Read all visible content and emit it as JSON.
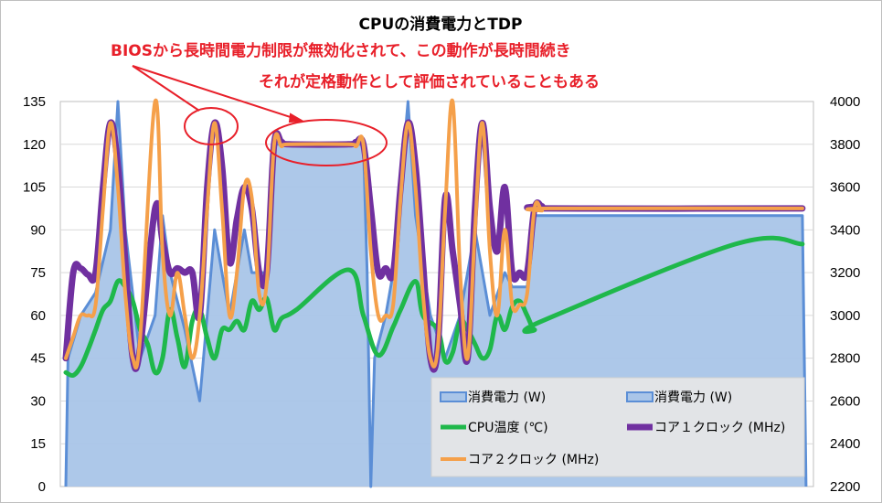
{
  "chart_data": {
    "type": "line",
    "title": "CPUの消費電力とTDP",
    "annotations": [
      "BIOSから長時間電力制限が無効化されて、この動作が長時間続き",
      "それが定格動作として評価されていることもある"
    ],
    "y_left": {
      "ylim": [
        0,
        135
      ],
      "ticks": [
        "0",
        "15",
        "30",
        "45",
        "60",
        "75",
        "90",
        "105",
        "120",
        "135"
      ]
    },
    "y_right": {
      "ylim": [
        2200,
        4000
      ],
      "ticks": [
        "2200",
        "2400",
        "2600",
        "2800",
        "3000",
        "3200",
        "3400",
        "3600",
        "3800",
        "4000"
      ]
    },
    "xlim": [
      0,
      100
    ],
    "legend": {
      "placement": "bottom-right",
      "items": [
        "消費電力 (W)",
        "消費電力 (W)",
        "CPU温度 (℃)",
        "コア１クロック (MHz)",
        "コア２クロック (MHz)"
      ]
    },
    "series": [
      {
        "name": "消費電力 (W)",
        "axis": "left",
        "type": "area",
        "color": "#a9c5e8",
        "edge": "#5b8ed6",
        "points": [
          [
            0,
            0
          ],
          [
            0.3,
            45
          ],
          [
            2,
            60
          ],
          [
            4,
            68
          ],
          [
            6,
            90
          ],
          [
            7,
            135
          ],
          [
            8,
            90
          ],
          [
            10,
            45
          ],
          [
            12,
            60
          ],
          [
            13,
            95
          ],
          [
            14,
            75
          ],
          [
            16,
            55
          ],
          [
            18,
            30
          ],
          [
            19,
            60
          ],
          [
            20,
            90
          ],
          [
            21,
            75
          ],
          [
            22,
            60
          ],
          [
            24,
            90
          ],
          [
            25,
            75
          ],
          [
            27,
            75
          ],
          [
            28,
            120
          ],
          [
            38,
            120
          ],
          [
            40,
            120
          ],
          [
            40.5,
            75
          ],
          [
            41,
            0
          ],
          [
            41.5,
            45
          ],
          [
            43,
            60
          ],
          [
            44,
            75
          ],
          [
            46,
            135
          ],
          [
            47,
            95
          ],
          [
            49,
            60
          ],
          [
            51,
            45
          ],
          [
            53,
            60
          ],
          [
            54,
            75
          ],
          [
            55,
            90
          ],
          [
            57,
            60
          ],
          [
            59,
            75
          ],
          [
            60,
            70
          ],
          [
            61,
            70
          ],
          [
            62,
            70
          ],
          [
            63,
            95
          ],
          [
            99,
            95
          ],
          [
            99.5,
            0
          ]
        ]
      },
      {
        "name": "消費電力 (W)",
        "axis": "left",
        "type": "line",
        "color": "#a9c5e8",
        "edge": "#5b8ed6",
        "points": []
      },
      {
        "name": "CPU温度 (℃)",
        "axis": "left",
        "type": "line",
        "color": "#1fb84b",
        "points": [
          [
            0,
            40
          ],
          [
            1,
            39
          ],
          [
            2,
            42
          ],
          [
            3,
            48
          ],
          [
            4,
            55
          ],
          [
            5,
            62
          ],
          [
            6,
            65
          ],
          [
            7,
            72
          ],
          [
            8,
            70
          ],
          [
            9,
            65
          ],
          [
            10,
            55
          ],
          [
            11,
            50
          ],
          [
            12,
            40
          ],
          [
            13,
            45
          ],
          [
            14,
            62
          ],
          [
            15,
            52
          ],
          [
            16,
            42
          ],
          [
            17,
            58
          ],
          [
            18,
            62
          ],
          [
            19,
            52
          ],
          [
            20,
            45
          ],
          [
            21,
            55
          ],
          [
            22,
            55
          ],
          [
            23,
            58
          ],
          [
            24,
            55
          ],
          [
            25,
            65
          ],
          [
            26,
            62
          ],
          [
            27,
            66
          ],
          [
            28,
            55
          ],
          [
            29,
            59
          ],
          [
            31,
            62
          ],
          [
            38,
            76
          ],
          [
            40,
            60
          ],
          [
            42,
            46
          ],
          [
            44,
            56
          ],
          [
            45,
            62
          ],
          [
            47,
            72
          ],
          [
            48,
            60
          ],
          [
            50,
            55
          ],
          [
            51,
            44
          ],
          [
            52,
            47
          ],
          [
            53,
            58
          ],
          [
            54,
            55
          ],
          [
            55,
            50
          ],
          [
            56,
            45
          ],
          [
            57,
            48
          ],
          [
            58,
            60
          ],
          [
            59,
            55
          ],
          [
            60,
            63
          ],
          [
            61,
            65
          ],
          [
            62,
            60
          ],
          [
            63,
            55
          ],
          [
            64,
            58
          ],
          [
            90,
            85
          ],
          [
            99,
            85
          ]
        ]
      },
      {
        "name": "コア１クロック (MHz)",
        "axis": "right",
        "type": "line",
        "color": "#7030a0",
        "points": [
          [
            0,
            2800
          ],
          [
            1,
            3200
          ],
          [
            2,
            3220
          ],
          [
            3,
            3190
          ],
          [
            4,
            3200
          ],
          [
            5,
            3600
          ],
          [
            6,
            3900
          ],
          [
            7,
            3700
          ],
          [
            8,
            3250
          ],
          [
            9,
            2800
          ],
          [
            10,
            2850
          ],
          [
            12,
            3500
          ],
          [
            13,
            3350
          ],
          [
            14,
            3200
          ],
          [
            15,
            3220
          ],
          [
            16,
            3200
          ],
          [
            17,
            3200
          ],
          [
            18,
            3000
          ],
          [
            19,
            3600
          ],
          [
            20,
            3900
          ],
          [
            21,
            3700
          ],
          [
            22,
            3250
          ],
          [
            23,
            3450
          ],
          [
            24,
            3600
          ],
          [
            25,
            3500
          ],
          [
            26,
            3200
          ],
          [
            27,
            3200
          ],
          [
            28,
            3800
          ],
          [
            29,
            3810
          ],
          [
            30,
            3800
          ],
          [
            38,
            3800
          ],
          [
            39,
            3810
          ],
          [
            40,
            3800
          ],
          [
            41,
            3500
          ],
          [
            42,
            3200
          ],
          [
            43,
            3220
          ],
          [
            44,
            3200
          ],
          [
            45,
            3600
          ],
          [
            46,
            3900
          ],
          [
            47,
            3700
          ],
          [
            48,
            3250
          ],
          [
            49,
            2800
          ],
          [
            50,
            2850
          ],
          [
            51,
            3550
          ],
          [
            52,
            3300
          ],
          [
            53,
            3050
          ],
          [
            54,
            2800
          ],
          [
            55,
            3500
          ],
          [
            56,
            3900
          ],
          [
            57,
            3500
          ],
          [
            58,
            3300
          ],
          [
            59,
            3600
          ],
          [
            60,
            3200
          ],
          [
            61,
            3200
          ],
          [
            62,
            3200
          ],
          [
            63,
            3500
          ],
          [
            64,
            3510
          ],
          [
            65,
            3500
          ],
          [
            99,
            3500
          ]
        ]
      },
      {
        "name": "コア２クロック (MHz)",
        "axis": "right",
        "type": "line",
        "color": "#f5a04a",
        "points": [
          [
            0,
            2800
          ],
          [
            1,
            2900
          ],
          [
            2,
            3000
          ],
          [
            3,
            3000
          ],
          [
            4,
            3050
          ],
          [
            5,
            3500
          ],
          [
            6,
            3900
          ],
          [
            7,
            3600
          ],
          [
            8,
            3100
          ],
          [
            9,
            2800
          ],
          [
            10,
            2900
          ],
          [
            12,
            4000
          ],
          [
            13,
            3300
          ],
          [
            14,
            3000
          ],
          [
            15,
            3200
          ],
          [
            16,
            3000
          ],
          [
            17,
            2800
          ],
          [
            18,
            3000
          ],
          [
            19,
            3500
          ],
          [
            20,
            3900
          ],
          [
            21,
            3500
          ],
          [
            22,
            3000
          ],
          [
            23,
            3200
          ],
          [
            24,
            3600
          ],
          [
            25,
            3550
          ],
          [
            26,
            3100
          ],
          [
            27,
            3150
          ],
          [
            28,
            3800
          ],
          [
            29,
            3790
          ],
          [
            30,
            3800
          ],
          [
            38,
            3800
          ],
          [
            39,
            3790
          ],
          [
            40,
            3800
          ],
          [
            41,
            3300
          ],
          [
            42,
            3000
          ],
          [
            43,
            3000
          ],
          [
            44,
            3050
          ],
          [
            45,
            3550
          ],
          [
            46,
            3900
          ],
          [
            47,
            3600
          ],
          [
            48,
            3100
          ],
          [
            49,
            2800
          ],
          [
            50,
            2850
          ],
          [
            51,
            3500
          ],
          [
            52,
            4000
          ],
          [
            53,
            3200
          ],
          [
            54,
            2800
          ],
          [
            55,
            3400
          ],
          [
            56,
            3900
          ],
          [
            57,
            3300
          ],
          [
            58,
            3000
          ],
          [
            59,
            3400
          ],
          [
            60,
            3050
          ],
          [
            61,
            3050
          ],
          [
            62,
            3100
          ],
          [
            63,
            3500
          ],
          [
            64,
            3490
          ],
          [
            65,
            3500
          ],
          [
            99,
            3500
          ]
        ]
      }
    ]
  }
}
